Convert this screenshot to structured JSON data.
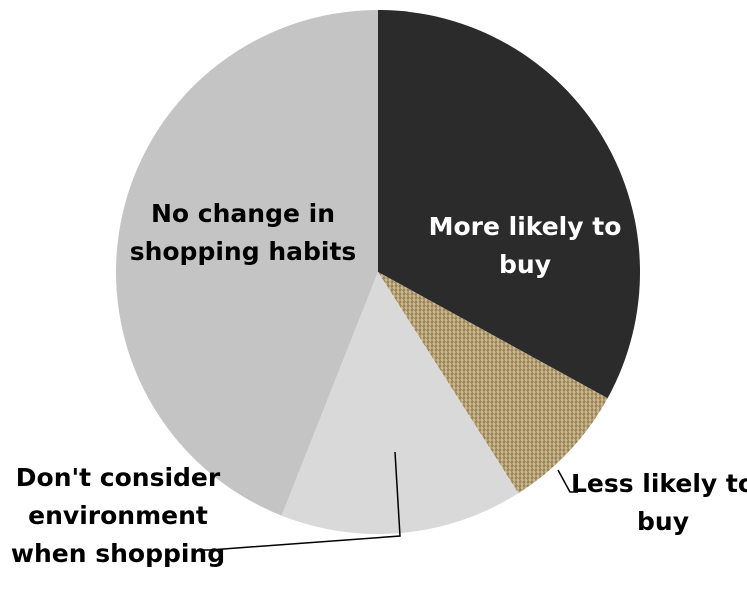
{
  "chart_data": {
    "type": "pie",
    "title": "",
    "categories": [
      "More likely to buy",
      "Less likely to buy",
      "Don't consider environment when shopping",
      "No change in shopping habits"
    ],
    "values": [
      33,
      8,
      15,
      44
    ],
    "unit": "%",
    "legend": "none",
    "label_lines": [
      [
        "More likely to",
        "buy"
      ],
      [
        "Less likely to",
        "buy"
      ],
      [
        "Don't consider",
        "environment",
        "when shopping"
      ],
      [
        "No change in",
        "shopping habits"
      ]
    ],
    "colors": [
      "#2b2b2b",
      "#b39d6f",
      "#d9d9d9",
      "#c4c4c4"
    ],
    "label_colors": [
      "#ffffff",
      "#000000",
      "#000000",
      "#000000"
    ],
    "fills": [
      "solid",
      "burlap-texture",
      "solid",
      "solid"
    ]
  }
}
